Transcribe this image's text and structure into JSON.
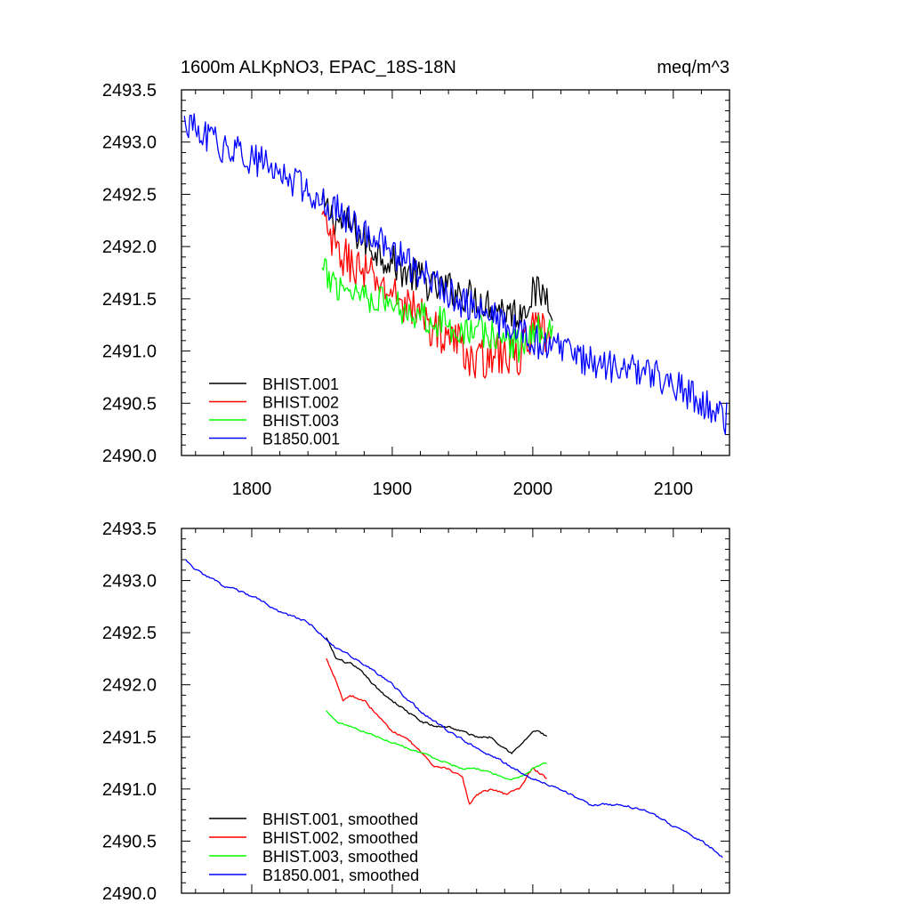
{
  "chart_data": [
    {
      "type": "line",
      "title": "1600m ALKpNO3, EPAC_18S-18N",
      "units": "meq/m^3",
      "xlim": [
        1750,
        2140
      ],
      "ylim": [
        2490.0,
        2493.5
      ],
      "xticks": [
        1800,
        1900,
        2000,
        2100
      ],
      "xtick_labels": [
        "1800",
        "1900",
        "2000",
        "2100"
      ],
      "yticks": [
        2490.0,
        2490.5,
        2491.0,
        2491.5,
        2492.0,
        2492.5,
        2493.0,
        2493.5
      ],
      "ytick_labels": [
        "2490.0",
        "2490.5",
        "2491.0",
        "2491.5",
        "2492.0",
        "2492.5",
        "2493.0",
        "2493.5"
      ],
      "legend_position": "bottom-left",
      "series": [
        {
          "name": "BHIST.001",
          "color": "#000000",
          "x": [
            1850,
            1860,
            1870,
            1880,
            1890,
            1900,
            1910,
            1920,
            1930,
            1940,
            1950,
            1960,
            1970,
            1980,
            1990,
            2000,
            2010,
            2014
          ],
          "values": [
            2492.4,
            2492.25,
            2492.2,
            2492.05,
            2491.95,
            2491.85,
            2491.75,
            2491.7,
            2491.6,
            2491.6,
            2491.55,
            2491.5,
            2491.45,
            2491.4,
            2491.35,
            2491.55,
            2491.55,
            2491.45
          ],
          "noise": 0.17
        },
        {
          "name": "BHIST.002",
          "color": "#ff0000",
          "x": [
            1850,
            1860,
            1870,
            1880,
            1890,
            1900,
            1910,
            1920,
            1930,
            1940,
            1950,
            1960,
            1970,
            1980,
            1990,
            2000,
            2010,
            2014
          ],
          "values": [
            2492.25,
            2491.95,
            2491.85,
            2491.75,
            2491.65,
            2491.55,
            2491.45,
            2491.35,
            2491.2,
            2491.15,
            2491.05,
            2490.85,
            2491.0,
            2490.95,
            2490.95,
            2491.2,
            2491.15,
            2491.1
          ],
          "noise": 0.2
        },
        {
          "name": "BHIST.003",
          "color": "#00ff00",
          "x": [
            1850,
            1860,
            1870,
            1880,
            1890,
            1900,
            1910,
            1920,
            1930,
            1940,
            1950,
            1960,
            1970,
            1980,
            1990,
            2000,
            2010,
            2014
          ],
          "values": [
            2491.75,
            2491.65,
            2491.6,
            2491.55,
            2491.5,
            2491.45,
            2491.4,
            2491.35,
            2491.3,
            2491.25,
            2491.2,
            2491.2,
            2491.15,
            2491.1,
            2491.05,
            2491.15,
            2491.25,
            2491.2
          ],
          "noise": 0.16
        },
        {
          "name": "B1850.001",
          "color": "#0000ff",
          "x": [
            1752,
            1760,
            1780,
            1800,
            1820,
            1840,
            1860,
            1880,
            1900,
            1920,
            1940,
            1960,
            1980,
            2000,
            2020,
            2040,
            2060,
            2080,
            2100,
            2120,
            2138
          ],
          "values": [
            2493.2,
            2493.1,
            2492.95,
            2492.85,
            2492.7,
            2492.55,
            2492.35,
            2492.15,
            2491.95,
            2491.75,
            2491.55,
            2491.4,
            2491.25,
            2491.1,
            2491.0,
            2490.9,
            2490.85,
            2490.8,
            2490.7,
            2490.5,
            2490.35
          ],
          "noise": 0.16
        }
      ]
    },
    {
      "type": "line",
      "title": "",
      "xlim": [
        1750,
        2140
      ],
      "ylim": [
        2490.0,
        2493.5
      ],
      "xticks": [
        1800,
        1900,
        2000,
        2100
      ],
      "yticks": [
        2490.0,
        2490.5,
        2491.0,
        2491.5,
        2492.0,
        2492.5,
        2493.0,
        2493.5
      ],
      "ytick_labels": [
        "2490.0",
        "2490.5",
        "2491.0",
        "2491.5",
        "2492.0",
        "2492.5",
        "2493.0",
        "2493.5"
      ],
      "legend_position": "bottom-left",
      "series": [
        {
          "name": "BHIST.001, smoothed",
          "color": "#000000",
          "x": [
            1853,
            1860,
            1870,
            1880,
            1890,
            1900,
            1910,
            1920,
            1930,
            1940,
            1950,
            1960,
            1970,
            1980,
            1985,
            1990,
            2000,
            2005,
            2010
          ],
          "values": [
            2492.45,
            2492.25,
            2492.2,
            2492.1,
            2491.95,
            2491.85,
            2491.75,
            2491.65,
            2491.6,
            2491.6,
            2491.55,
            2491.5,
            2491.5,
            2491.4,
            2491.35,
            2491.4,
            2491.55,
            2491.55,
            2491.5
          ],
          "noise": 0.025
        },
        {
          "name": "BHIST.002, smoothed",
          "color": "#ff0000",
          "x": [
            1853,
            1860,
            1865,
            1870,
            1880,
            1890,
            1900,
            1910,
            1920,
            1930,
            1940,
            1950,
            1955,
            1960,
            1970,
            1980,
            1990,
            2000,
            2010
          ],
          "values": [
            2492.25,
            2492.05,
            2491.85,
            2491.9,
            2491.85,
            2491.7,
            2491.55,
            2491.5,
            2491.35,
            2491.2,
            2491.2,
            2491.1,
            2490.85,
            2490.95,
            2491.0,
            2490.95,
            2491.0,
            2491.2,
            2491.1
          ],
          "noise": 0.025
        },
        {
          "name": "BHIST.003, smoothed",
          "color": "#00ff00",
          "x": [
            1853,
            1860,
            1870,
            1880,
            1890,
            1900,
            1910,
            1920,
            1930,
            1940,
            1950,
            1960,
            1970,
            1980,
            1990,
            2000,
            2010
          ],
          "values": [
            2491.75,
            2491.65,
            2491.6,
            2491.55,
            2491.5,
            2491.45,
            2491.4,
            2491.35,
            2491.3,
            2491.25,
            2491.2,
            2491.2,
            2491.15,
            2491.1,
            2491.1,
            2491.2,
            2491.25
          ],
          "noise": 0.02
        },
        {
          "name": "B1850.001, smoothed",
          "color": "#0000ff",
          "x": [
            1753,
            1760,
            1780,
            1800,
            1820,
            1840,
            1860,
            1880,
            1900,
            1920,
            1940,
            1960,
            1980,
            2000,
            2020,
            2040,
            2060,
            2080,
            2100,
            2120,
            2135
          ],
          "values": [
            2493.2,
            2493.1,
            2492.95,
            2492.85,
            2492.7,
            2492.6,
            2492.35,
            2492.2,
            2492.0,
            2491.75,
            2491.55,
            2491.4,
            2491.25,
            2491.1,
            2491.0,
            2490.85,
            2490.85,
            2490.8,
            2490.65,
            2490.5,
            2490.35
          ],
          "noise": 0.025
        }
      ]
    }
  ]
}
